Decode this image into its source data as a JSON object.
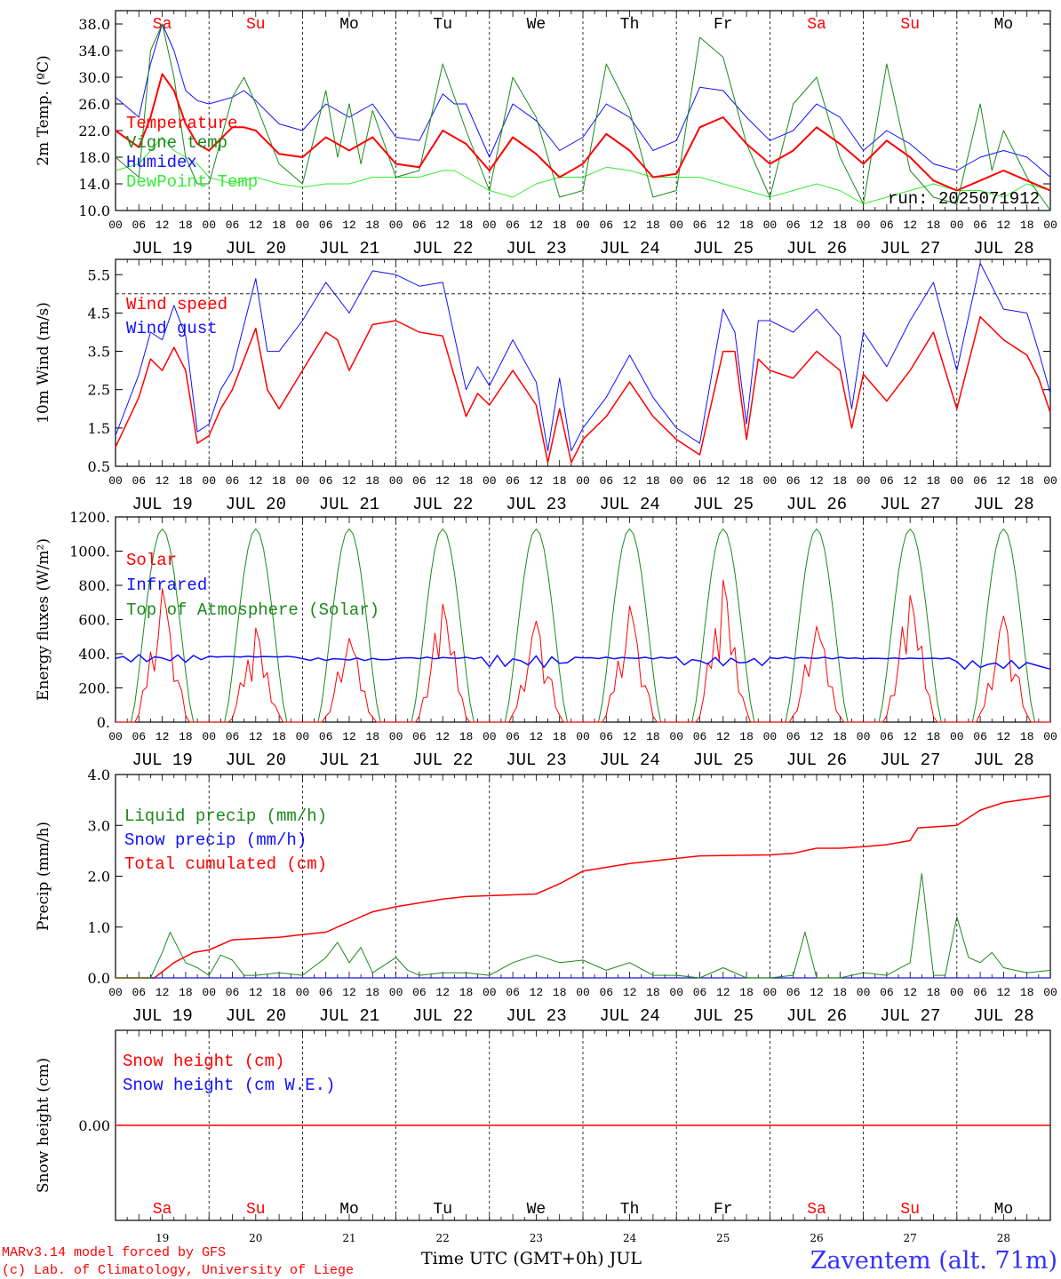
{
  "x_axis": {
    "hour_ticks": [
      "00",
      "06",
      "12",
      "18"
    ],
    "date_labels": [
      "JUL 19",
      "JUL 20",
      "JUL 21",
      "JUL 22",
      "JUL 23",
      "JUL 24",
      "JUL 25",
      "JUL 26",
      "JUL 27",
      "JUL 28"
    ],
    "weekdays": [
      "Sa",
      "Su",
      "Mo",
      "Tu",
      "We",
      "Th",
      "Fr",
      "Sa",
      "Su",
      "Mo"
    ],
    "weekend_flags": [
      true,
      true,
      false,
      false,
      false,
      false,
      false,
      true,
      true,
      false
    ],
    "day_numbers": [
      "19",
      "20",
      "21",
      "22",
      "23",
      "24",
      "25",
      "26",
      "27",
      "28"
    ],
    "final_label": "Time UTC (GMT+0h) JUL"
  },
  "footer": {
    "credit_line1": "MARv3.14 model forced by GFS",
    "credit_line2": "(c) Lab. of Climatology, University of Liege",
    "station": "Zaventem (alt. 71m)"
  },
  "colors": {
    "red": "#ff0000",
    "green": "#1a8a1a",
    "blue": "#1010ff",
    "light_green": "#33ee33",
    "station_text": "#3333ff"
  },
  "chart_data": [
    {
      "id": "temp",
      "type": "line",
      "ylabel": "2m Temp. (ºC)",
      "ylim": [
        10,
        40
      ],
      "yticks": [
        "10.0",
        "14.0",
        "18.0",
        "22.0",
        "26.0",
        "30.0",
        "34.0",
        "38.0"
      ],
      "ytick_values": [
        10,
        14,
        18,
        22,
        26,
        30,
        34,
        38
      ],
      "annotation": "run: 2025071912",
      "x_unit": "hours since JUL 19 00 UTC",
      "series": [
        {
          "name": "Temperature",
          "color": "red",
          "width": 2,
          "x": [
            0,
            6,
            9,
            12,
            15,
            18,
            21,
            24,
            30,
            33,
            36,
            42,
            48,
            54,
            60,
            66,
            72,
            78,
            84,
            87,
            90,
            96,
            102,
            108,
            114,
            120,
            126,
            132,
            138,
            144,
            150,
            156,
            162,
            168,
            174,
            180,
            186,
            192,
            198,
            204,
            210,
            216,
            222,
            228,
            234,
            240
          ],
          "y": [
            22,
            19.5,
            24,
            30.5,
            28,
            23,
            20,
            19,
            22.5,
            22.5,
            22,
            18.5,
            18,
            21,
            19,
            21,
            17,
            16.5,
            22,
            21,
            20,
            16,
            21,
            18.5,
            15,
            17,
            21.5,
            19,
            15,
            15.5,
            22.5,
            24,
            20,
            17,
            19,
            22.5,
            20,
            17,
            20.5,
            18,
            14.5,
            13,
            14.5,
            16,
            14.5,
            13
          ]
        },
        {
          "name": "Vigne temp",
          "color": "green",
          "width": 1,
          "x": [
            0,
            6,
            9,
            12,
            15,
            18,
            21,
            24,
            30,
            33,
            36,
            42,
            48,
            54,
            57,
            60,
            63,
            66,
            72,
            78,
            84,
            87,
            90,
            96,
            102,
            108,
            114,
            120,
            126,
            132,
            138,
            144,
            150,
            156,
            162,
            168,
            174,
            180,
            186,
            192,
            198,
            204,
            210,
            216,
            222,
            225,
            228,
            234,
            240
          ],
          "y": [
            18,
            15,
            34,
            38,
            30,
            18,
            14,
            14,
            27,
            30,
            26,
            17,
            14,
            28,
            18,
            26,
            17,
            25,
            15,
            16,
            32,
            27,
            22,
            13,
            30,
            24,
            12,
            13,
            32,
            25,
            12,
            13,
            36,
            33,
            20,
            12,
            26,
            30,
            18,
            11,
            32,
            16,
            12,
            11,
            26,
            16,
            22,
            15,
            10
          ]
        },
        {
          "name": "Humidex",
          "color": "blue",
          "width": 1,
          "x": [
            0,
            6,
            9,
            12,
            15,
            18,
            21,
            24,
            30,
            33,
            36,
            42,
            48,
            54,
            60,
            66,
            72,
            78,
            84,
            87,
            90,
            96,
            102,
            108,
            114,
            120,
            126,
            132,
            138,
            144,
            150,
            156,
            162,
            168,
            174,
            180,
            186,
            192,
            198,
            204,
            210,
            216,
            222,
            228,
            234,
            240
          ],
          "y": [
            27,
            24,
            32,
            38,
            34,
            28,
            26.5,
            26,
            27,
            28,
            26.5,
            23,
            22,
            26,
            24,
            26,
            21,
            20.5,
            27.5,
            26,
            26,
            18,
            26,
            23.5,
            19,
            21,
            26,
            24,
            19,
            20.5,
            28.5,
            28,
            24,
            20.5,
            22,
            26,
            24,
            19,
            22,
            20,
            17,
            16,
            18,
            19,
            18,
            15
          ]
        },
        {
          "name": "DewPoint Temp",
          "color": "light_green",
          "width": 1,
          "x": [
            0,
            6,
            9,
            12,
            15,
            18,
            21,
            24,
            30,
            33,
            36,
            42,
            48,
            54,
            60,
            66,
            72,
            78,
            84,
            87,
            90,
            96,
            102,
            108,
            114,
            120,
            126,
            132,
            138,
            144,
            150,
            156,
            162,
            168,
            174,
            180,
            186,
            192,
            198,
            204,
            210,
            216,
            222,
            228,
            234,
            240
          ],
          "y": [
            16,
            17,
            19,
            21,
            19,
            18,
            17,
            15,
            14,
            14.5,
            15,
            14,
            13.5,
            14,
            14,
            15,
            15,
            15,
            16,
            16,
            15,
            13,
            12,
            14,
            15,
            15,
            16.5,
            16,
            15,
            15,
            15,
            14,
            13,
            12,
            13,
            14,
            13,
            11,
            12,
            13,
            14,
            13,
            13,
            12,
            14,
            13
          ]
        }
      ]
    },
    {
      "id": "wind",
      "type": "line",
      "ylabel": "10m Wind (m/s)",
      "ylim": [
        0.5,
        5.9
      ],
      "yticks": [
        "0.5",
        "1.5",
        "2.5",
        "3.5",
        "4.5",
        "5.5"
      ],
      "ytick_values": [
        0.5,
        1.5,
        2.5,
        3.5,
        4.5,
        5.5
      ],
      "reference_line": 5.0,
      "x_unit": "hours since JUL 19 00 UTC",
      "series": [
        {
          "name": "Wind speed",
          "color": "red",
          "width": 1.5,
          "x": [
            0,
            6,
            9,
            12,
            15,
            18,
            21,
            24,
            27,
            30,
            36,
            39,
            42,
            48,
            54,
            57,
            60,
            66,
            72,
            78,
            84,
            90,
            93,
            96,
            102,
            108,
            111,
            114,
            117,
            120,
            126,
            132,
            138,
            144,
            150,
            156,
            159,
            162,
            165,
            168,
            174,
            180,
            186,
            189,
            192,
            198,
            204,
            210,
            216,
            222,
            228,
            234,
            237,
            240
          ],
          "y": [
            1,
            2.3,
            3.3,
            3,
            3.6,
            3,
            1.1,
            1.3,
            2,
            2.5,
            4.1,
            2.5,
            2,
            3,
            4,
            3.8,
            3,
            4.2,
            4.3,
            4,
            3.9,
            1.8,
            2.4,
            2.1,
            3,
            2.1,
            0.6,
            2,
            0.6,
            1.2,
            1.8,
            2.7,
            1.8,
            1.2,
            0.8,
            3.5,
            3.5,
            1.2,
            3.3,
            3,
            2.8,
            3.5,
            3,
            1.5,
            2.9,
            2.2,
            3,
            4,
            2,
            4.4,
            3.8,
            3.4,
            2.8,
            1.9
          ]
        },
        {
          "name": "Wind gust",
          "color": "blue",
          "width": 1,
          "x": [
            0,
            6,
            9,
            12,
            15,
            18,
            21,
            24,
            27,
            30,
            36,
            39,
            42,
            48,
            54,
            57,
            60,
            66,
            72,
            78,
            84,
            90,
            93,
            96,
            102,
            108,
            111,
            114,
            117,
            120,
            126,
            132,
            138,
            144,
            150,
            156,
            159,
            162,
            165,
            168,
            174,
            180,
            186,
            189,
            192,
            198,
            204,
            210,
            216,
            222,
            228,
            234,
            237,
            240
          ],
          "y": [
            1.3,
            2.9,
            4,
            3.8,
            4.7,
            3.9,
            1.4,
            1.6,
            2.5,
            3,
            5.4,
            3.5,
            3.5,
            4.3,
            5.3,
            4.9,
            4.5,
            5.6,
            5.5,
            5.2,
            5.3,
            2.5,
            3.1,
            2.6,
            3.8,
            2.7,
            0.9,
            2.8,
            0.9,
            1.5,
            2.3,
            3.4,
            2.3,
            1.5,
            1.1,
            4.6,
            4,
            1.6,
            4.3,
            4.3,
            4,
            4.6,
            3.9,
            2,
            4,
            3.1,
            4.3,
            5.3,
            3,
            5.8,
            4.6,
            4.5,
            3.5,
            2.4
          ]
        }
      ]
    },
    {
      "id": "energy",
      "type": "line",
      "ylabel": "Energy fluxes (W/m²)",
      "ylim": [
        0,
        1200
      ],
      "yticks": [
        "0.",
        "200.",
        "400.",
        "600.",
        "800.",
        "1000.",
        "1200."
      ],
      "ytick_values": [
        0,
        200,
        400,
        600,
        800,
        1000,
        1200
      ],
      "x_unit": "hours since JUL 19 00 UTC",
      "series": [
        {
          "name": "Solar",
          "color": "red",
          "width": 1,
          "daily_peaks": [
            780,
            550,
            490,
            690,
            590,
            680,
            830,
            560,
            740,
            620
          ]
        },
        {
          "name": "Infrared",
          "color": "blue",
          "width": 1.5,
          "daily_levels": [
            [
              350,
              395
            ],
            [
              380,
              385
            ],
            [
              360,
              375
            ],
            [
              370,
              380
            ],
            [
              320,
              390
            ],
            [
              370,
              380
            ],
            [
              330,
              380
            ],
            [
              370,
              380
            ],
            [
              370,
              375
            ],
            [
              360,
              310
            ]
          ]
        },
        {
          "name": "Top of Atmosphere (Solar)",
          "color": "green",
          "width": 1,
          "daily_peak": 1130,
          "sunrise_hour": 4,
          "sunset_hour": 20
        }
      ]
    },
    {
      "id": "precip",
      "type": "line",
      "ylabel": "Precip (mm/h)",
      "ylim": [
        0,
        4
      ],
      "yticks": [
        "0.0",
        "1.0",
        "2.0",
        "3.0",
        "4.0"
      ],
      "ytick_values": [
        0,
        1,
        2,
        3,
        4
      ],
      "x_unit": "hours since JUL 19 00 UTC",
      "series": [
        {
          "name": "Liquid precip (mm/h)",
          "color": "green",
          "width": 1,
          "x": [
            0,
            9,
            12,
            14,
            16,
            18,
            21,
            24,
            27,
            30,
            33,
            36,
            42,
            48,
            54,
            57,
            60,
            63,
            66,
            72,
            75,
            78,
            84,
            90,
            96,
            102,
            108,
            114,
            120,
            126,
            132,
            138,
            144,
            150,
            156,
            162,
            168,
            174,
            177,
            180,
            186,
            192,
            198,
            204,
            207,
            210,
            213,
            216,
            219,
            222,
            225,
            228,
            234,
            240
          ],
          "y": [
            0,
            0,
            0.5,
            0.9,
            0.6,
            0.3,
            0.2,
            0.05,
            0.45,
            0.35,
            0.05,
            0.05,
            0.1,
            0.05,
            0.4,
            0.7,
            0.3,
            0.6,
            0.1,
            0.4,
            0.15,
            0.05,
            0.1,
            0.1,
            0.05,
            0.3,
            0.45,
            0.3,
            0.35,
            0.15,
            0.3,
            0.05,
            0.05,
            0,
            0.2,
            0,
            0,
            0.05,
            0.9,
            0,
            0,
            0.1,
            0.05,
            0.3,
            2.05,
            0.05,
            0.05,
            1.2,
            0.4,
            0.3,
            0.5,
            0.2,
            0.1,
            0.15
          ]
        },
        {
          "name": "Snow precip (mm/h)",
          "color": "blue",
          "width": 1,
          "x": [
            0,
            240
          ],
          "y": [
            0,
            0
          ]
        },
        {
          "name": "Total cumulated (cm)",
          "color": "red",
          "width": 1.5,
          "x": [
            0,
            10,
            15,
            20,
            24,
            30,
            42,
            48,
            54,
            60,
            66,
            72,
            84,
            90,
            108,
            114,
            120,
            132,
            144,
            150,
            168,
            174,
            180,
            186,
            192,
            198,
            204,
            206,
            210,
            216,
            222,
            228,
            240
          ],
          "y": [
            0,
            0,
            0.3,
            0.5,
            0.55,
            0.75,
            0.8,
            0.85,
            0.9,
            1.1,
            1.3,
            1.4,
            1.55,
            1.6,
            1.65,
            1.85,
            2.1,
            2.25,
            2.35,
            2.4,
            2.42,
            2.45,
            2.55,
            2.55,
            2.58,
            2.62,
            2.7,
            2.95,
            2.97,
            3.0,
            3.3,
            3.45,
            3.58
          ]
        }
      ]
    },
    {
      "id": "snow",
      "type": "line",
      "ylabel": "Snow height (cm)",
      "ylim": [
        -1,
        1
      ],
      "yticks": [
        "0.00"
      ],
      "ytick_values": [
        0
      ],
      "x_unit": "hours since JUL 19 00 UTC",
      "series": [
        {
          "name": "Snow height (cm)",
          "color": "red",
          "width": 1.5,
          "x": [
            0,
            240
          ],
          "y": [
            0,
            0
          ]
        },
        {
          "name": "Snow height (cm W.E.)",
          "color": "blue",
          "width": 1,
          "x": [
            0,
            240
          ],
          "y": [
            0,
            0
          ]
        }
      ]
    }
  ]
}
